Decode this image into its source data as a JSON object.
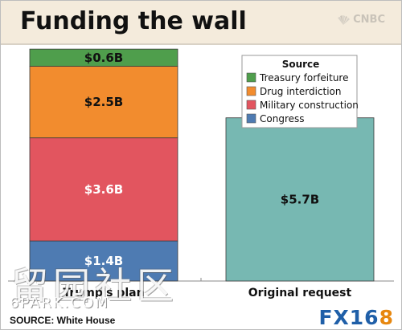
{
  "header": {
    "title": "Funding the wall",
    "brand": "CNBC"
  },
  "source_note": "SOURCE: White House",
  "watermarks": {
    "chinese": "留园社区",
    "site": "6PARK.COM",
    "fx_text": "FX16",
    "fx_digit": "8"
  },
  "colors": {
    "congress": "#4e7bb2",
    "military_construction": "#e2555f",
    "drug_interdiction": "#f28c2e",
    "treasury_forfeiture": "#4f9e4c",
    "original_request": "#77b8b2",
    "header_bg": "#f4ebdc"
  },
  "chart_data": {
    "type": "bar",
    "stacked": true,
    "title": "Funding the wall",
    "categories": [
      "Trump's plan",
      "Original request"
    ],
    "legend": {
      "title": "Source",
      "placement": "top-right",
      "items": [
        "Treasury forfeiture",
        "Drug interdiction",
        "Military construction",
        "Congress"
      ]
    },
    "series": [
      {
        "name": "Congress",
        "values": [
          1.4,
          null
        ],
        "labels": [
          "$1.4B",
          ""
        ],
        "color": "#4e7bb2"
      },
      {
        "name": "Military construction",
        "values": [
          3.6,
          null
        ],
        "labels": [
          "$3.6B",
          ""
        ],
        "color": "#e2555f"
      },
      {
        "name": "Drug interdiction",
        "values": [
          2.5,
          null
        ],
        "labels": [
          "$2.5B",
          ""
        ],
        "color": "#f28c2e"
      },
      {
        "name": "Treasury forfeiture",
        "values": [
          0.6,
          null
        ],
        "labels": [
          "$0.6B",
          ""
        ],
        "color": "#4f9e4c"
      },
      {
        "name": "",
        "values": [
          null,
          5.7
        ],
        "labels": [
          "",
          "$5.7B"
        ],
        "color": "#77b8b2"
      }
    ],
    "ylim": [
      0,
      8.3
    ],
    "grid": false,
    "xlabel": "",
    "ylabel": ""
  }
}
